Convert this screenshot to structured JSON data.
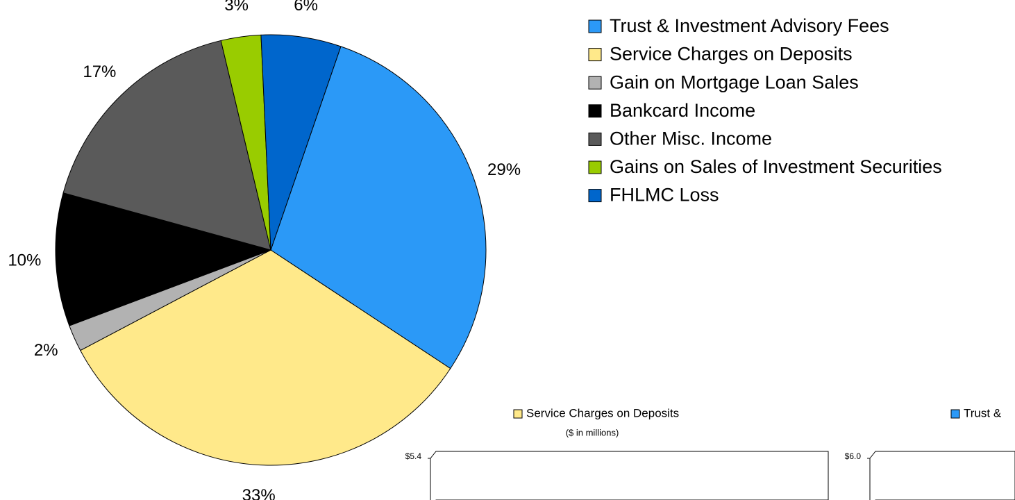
{
  "chart_data": [
    {
      "type": "pie",
      "categories": [
        "Trust & Investment Advisory Fees",
        "Service Charges on Deposits",
        "Gain on Mortgage Loan Sales",
        "Bankcard Income",
        "Other Misc. Income",
        "Gains on Sales of Investment Securities",
        "FHLMC Loss"
      ],
      "values": [
        29,
        33,
        2,
        10,
        17,
        3,
        6
      ],
      "value_labels": [
        "29%",
        "33%",
        "2%",
        "10%",
        "17%",
        "3%",
        "6%"
      ],
      "colors": [
        "#2B99F7",
        "#FFE98A",
        "#B2B2B2",
        "#000000",
        "#5A5A5A",
        "#99CC00",
        "#0066CC"
      ],
      "legend": "right"
    },
    {
      "type": "bar",
      "subtitle": "($ in millions)",
      "series": [
        {
          "name": "Service Charges on Deposits",
          "color": "#FFE98A"
        }
      ],
      "yticks": [
        {
          "value": 5.4,
          "label": "$5.4"
        }
      ]
    },
    {
      "type": "bar",
      "series": [
        {
          "name": "Trust &",
          "color": "#2B99F7"
        }
      ],
      "yticks": [
        {
          "value": 6.0,
          "label": "$6.0"
        }
      ]
    }
  ]
}
